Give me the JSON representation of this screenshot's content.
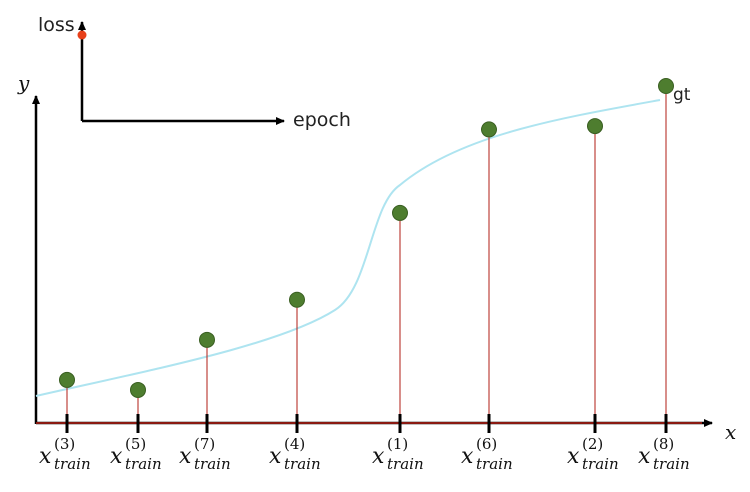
{
  "inset": {
    "y_label": "loss",
    "x_label": "epoch",
    "marker_color": "#e8401a"
  },
  "main": {
    "y_label": "y",
    "x_label": "x",
    "curve_label": "gt",
    "curve_color": "#aee4f0",
    "point_color": "#4e7d2f",
    "stem_color": "#b21e16",
    "baseline_color": "#8b1a12"
  },
  "samples": [
    {
      "index": "(3)",
      "base": "x",
      "sub": "train",
      "value": 0.12
    },
    {
      "index": "(5)",
      "base": "x",
      "sub": "train",
      "value": 0.09
    },
    {
      "index": "(7)",
      "base": "x",
      "sub": "train",
      "value": 0.24
    },
    {
      "index": "(4)",
      "base": "x",
      "sub": "train",
      "value": 0.36
    },
    {
      "index": "(1)",
      "base": "x",
      "sub": "train",
      "value": 0.62
    },
    {
      "index": "(6)",
      "base": "x",
      "sub": "train",
      "value": 0.87
    },
    {
      "index": "(2)",
      "base": "x",
      "sub": "train",
      "value": 0.88
    },
    {
      "index": "(8)",
      "base": "x",
      "sub": "train",
      "value": 1.0
    }
  ]
}
